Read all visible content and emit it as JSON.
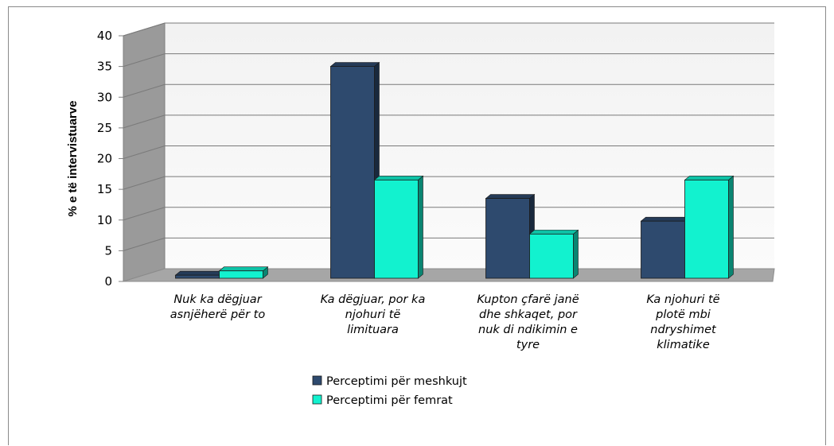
{
  "chart_data": {
    "type": "bar",
    "categories": [
      [
        "Nuk ka dëgjuar",
        "asnjëherë për to"
      ],
      [
        "Ka dëgjuar, por ka",
        "njohuri të",
        "limituara"
      ],
      [
        "Kupton çfarë janë",
        "dhe shkaqet, por",
        "nuk di ndikimin e",
        "tyre"
      ],
      [
        "Ka njohuri të",
        "plotë mbi",
        "ndryshimet",
        "klimatike"
      ]
    ],
    "series": [
      {
        "name": "Perceptimi për meshkujt",
        "values": [
          0.5,
          34.5,
          13.0,
          9.3
        ],
        "color": "#2E4A6E"
      },
      {
        "name": "Perceptimi për femrat",
        "values": [
          1.2,
          16.0,
          7.2,
          16.0
        ],
        "color": "#12F2CF"
      }
    ],
    "ylabel": "% e të intervistuarve",
    "ylim": [
      0,
      40
    ],
    "yticks": [
      0,
      5,
      10,
      15,
      20,
      25,
      30,
      35,
      40
    ],
    "grid": true,
    "legend_position": "bottom",
    "style": "3d-bar"
  }
}
